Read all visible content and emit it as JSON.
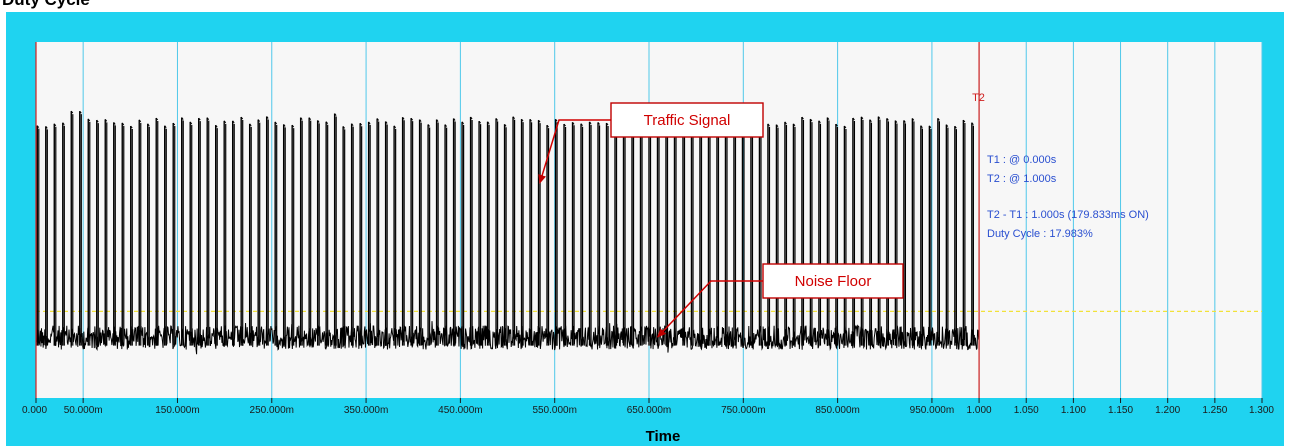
{
  "window": {
    "title": "Duty Cycle"
  },
  "chart_data": {
    "type": "line",
    "xlabel": "Time",
    "xlim": [
      0,
      1.3
    ],
    "x_ticks": [
      {
        "value": 0.0,
        "label": "0.000"
      },
      {
        "value": 0.05,
        "label": "50.000m"
      },
      {
        "value": 0.15,
        "label": "150.000m"
      },
      {
        "value": 0.25,
        "label": "250.000m"
      },
      {
        "value": 0.35,
        "label": "350.000m"
      },
      {
        "value": 0.45,
        "label": "450.000m"
      },
      {
        "value": 0.55,
        "label": "550.000m"
      },
      {
        "value": 0.65,
        "label": "650.000m"
      },
      {
        "value": 0.75,
        "label": "750.000m"
      },
      {
        "value": 0.85,
        "label": "850.000m"
      },
      {
        "value": 0.95,
        "label": "950.000m"
      },
      {
        "value": 1.0,
        "label": "1.000"
      },
      {
        "value": 1.05,
        "label": "1.050"
      },
      {
        "value": 1.1,
        "label": "1.100"
      },
      {
        "value": 1.15,
        "label": "1.150"
      },
      {
        "value": 1.2,
        "label": "1.200"
      },
      {
        "value": 1.25,
        "label": "1.250"
      },
      {
        "value": 1.3,
        "label": "1.300"
      }
    ],
    "grid": true,
    "series": [
      {
        "color": "#000000",
        "signal_end": 1.0,
        "pulse_count": 111,
        "duty_cycle": 0.17983,
        "pulse_level": 0.82,
        "noise_level": 0.16
      }
    ],
    "threshold": {
      "level": 0.24,
      "color": "#f2e23a"
    },
    "cursors": [
      {
        "name": "T1",
        "value": 0.0,
        "color": "#d02020"
      },
      {
        "name": "T2",
        "value": 1.0,
        "color": "#d02020",
        "label": "T2"
      }
    ],
    "readouts": [
      "T1 : @ 0.000s",
      "T2 : @ 1.000s",
      "T2 - T1 : 1.000s (179.833ms ON)",
      "Duty Cycle : 17.983%"
    ],
    "annotations": [
      {
        "text": "Traffic Signal",
        "target_x": 0.53,
        "target_level": 0.62
      },
      {
        "text": "Noise Floor",
        "target_x": 0.655,
        "target_level": 0.15
      }
    ],
    "colors": {
      "frame": "#1fd3f0",
      "plot_bg": "#f7f7f7",
      "grid": "#4fc8ea",
      "cursor": "#d02020",
      "readout_text": "#2a4fd0",
      "annotation": "#d00000"
    }
  }
}
